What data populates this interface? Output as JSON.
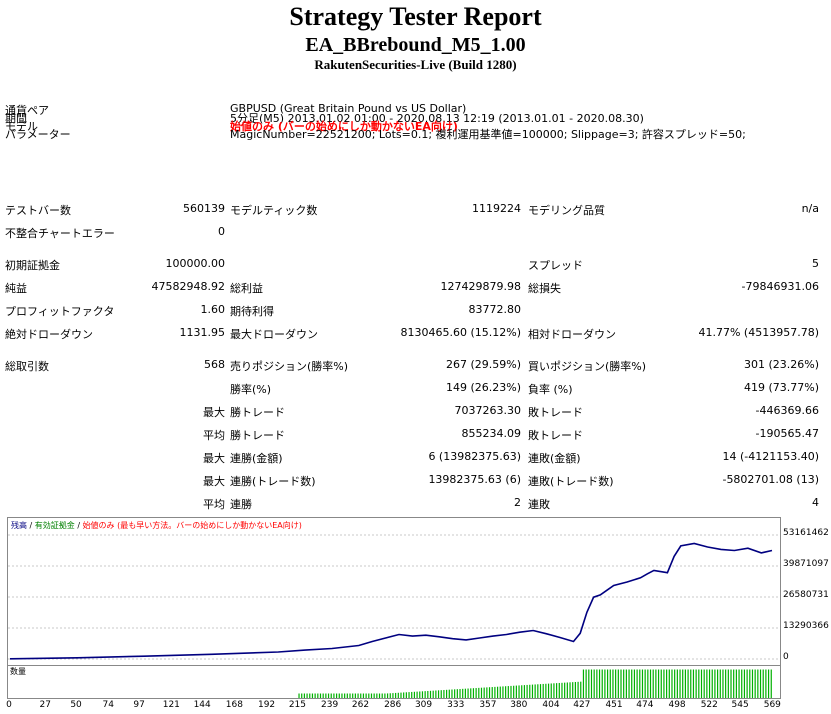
{
  "header": {
    "title": "Strategy Tester Report",
    "ea_name": "EA_BBrebound_M5_1.00",
    "server": "RakutenSecurities-Live (Build 1280)"
  },
  "info": {
    "symbol_label": "通貨ペア",
    "symbol_value": "GBPUSD (Great Britain Pound vs US Dollar)",
    "period_label": "期間",
    "period_value": "5分足(M5) 2013.01.02 01:00 - 2020.08.13 12:19 (2013.01.01 - 2020.08.30)",
    "model_label": "モデル",
    "model_value": "始値のみ (バーの始めにしか動かないEA向け)",
    "params_label": "パラメーター",
    "params_value": "MagicNumber=22521200; Lots=0.1; 複利運用基準値=100000; Slippage=3; 許容スプレッド=50;"
  },
  "stats": {
    "bars_label": "テストバー数",
    "bars": "560139",
    "ticks_label": "モデルティック数",
    "ticks": "1119224",
    "quality_label": "モデリング品質",
    "quality": "n/a",
    "mismatch_label": "不整合チャートエラー",
    "mismatch": "0",
    "deposit_label": "初期証拠金",
    "deposit": "100000.00",
    "spread_label": "スプレッド",
    "spread": "5",
    "net_label": "純益",
    "net": "47582948.92",
    "gross_profit_label": "総利益",
    "gross_profit": "127429879.98",
    "gross_loss_label": "総損失",
    "gross_loss": "-79846931.06",
    "pf_label": "プロフィットファクタ",
    "pf": "1.60",
    "expected_label": "期待利得",
    "expected": "83772.80",
    "abs_dd_label": "絶対ドローダウン",
    "abs_dd": "1131.95",
    "max_dd_label": "最大ドローダウン",
    "max_dd": "8130465.60 (15.12%)",
    "rel_dd_label": "相対ドローダウン",
    "rel_dd": "41.77% (4513957.78)",
    "trades_label": "総取引数",
    "trades": "568",
    "short_label": "売りポジション(勝率%)",
    "short": "267 (29.59%)",
    "long_label": "買いポジション(勝率%)",
    "long": "301 (23.26%)",
    "win_pct_label": "勝率(%)",
    "win_pct": "149 (26.23%)",
    "loss_pct_label": "負率 (%)",
    "loss_pct": "419 (73.77%)",
    "max_label": "最大",
    "avg_label": "平均",
    "win_trade_label": "勝トレード",
    "loss_trade_label": "敗トレード",
    "max_win": "7037263.30",
    "max_loss": "-446369.66",
    "avg_win": "855234.09",
    "avg_loss": "-190565.47",
    "cons_win_money_label": "連勝(金額)",
    "cons_win_money": "6 (13982375.63)",
    "cons_loss_money_label": "連敗(金額)",
    "cons_loss_money": "14 (-4121153.40)",
    "cons_win_trade_label": "連勝(トレード数)",
    "cons_win_trade": "13982375.63 (6)",
    "cons_loss_trade_label": "連敗(トレード数)",
    "cons_loss_trade": "-5802701.08 (13)",
    "cons_win_avg_label": "連勝",
    "cons_win_avg": "2",
    "cons_loss_avg_label": "連敗",
    "cons_loss_avg": "4"
  },
  "chart_legend": {
    "balance": "残高",
    "sep": " / ",
    "equity": "有効証拠金",
    "model": "始値のみ (最も早い方法。バーの始めにしか動かないEA向け)",
    "balance_color": "#000080",
    "equity_color": "#008000",
    "model_color": "#ff0000",
    "volume": "数量"
  },
  "chart_data": {
    "type": "line",
    "y_ticks": [
      "53161462",
      "39871097",
      "26580731",
      "13290366",
      "0"
    ],
    "x_ticks": [
      "0",
      "27",
      "50",
      "74",
      "97",
      "121",
      "144",
      "168",
      "192",
      "215",
      "239",
      "262",
      "286",
      "309",
      "333",
      "357",
      "380",
      "404",
      "427",
      "451",
      "474",
      "498",
      "522",
      "545",
      "569"
    ],
    "ylim": [
      0,
      53161462
    ],
    "xlim": [
      0,
      568
    ],
    "series": [
      {
        "values_x": [
          0,
          50,
          100,
          150,
          200,
          220,
          240,
          260,
          270,
          280,
          290,
          300,
          310,
          320,
          330,
          340,
          350,
          360,
          370,
          380,
          390,
          400,
          410,
          420,
          425,
          430,
          435,
          440,
          445,
          450,
          460,
          470,
          475,
          480,
          490,
          495,
          500,
          510,
          520,
          530,
          540,
          550,
          560,
          568
        ],
        "values_y": [
          100000,
          500000,
          1200000,
          2000000,
          3000000,
          3800000,
          4500000,
          5800000,
          7500000,
          9000000,
          10500000,
          9800000,
          10200000,
          9500000,
          8700000,
          8200000,
          9000000,
          9800000,
          10500000,
          11500000,
          12200000,
          10800000,
          9200000,
          7500000,
          11000000,
          20000000,
          26500000,
          27500000,
          29500000,
          31500000,
          33000000,
          34800000,
          36500000,
          38000000,
          37000000,
          44000000,
          48500000,
          49500000,
          48000000,
          47000000,
          46500000,
          47500000,
          45500000,
          46500000
        ]
      }
    ]
  },
  "volume_data": {
    "start_trade": 215,
    "ramp_end_trade": 427,
    "end_trade": 568,
    "low_level": 0.15,
    "mid_level": 0.55,
    "full_level": 0.95
  }
}
